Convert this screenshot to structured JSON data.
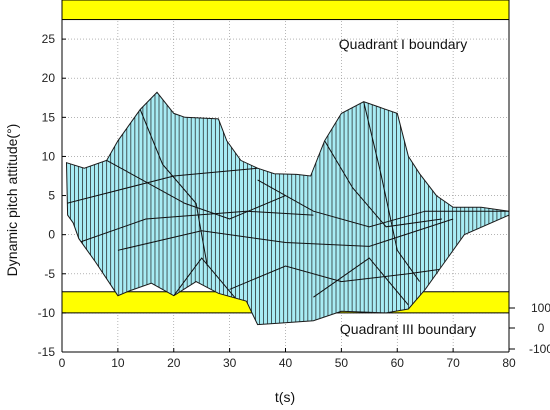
{
  "chart_data": {
    "type": "area",
    "title": "",
    "xlabel": "t(s)",
    "ylabel": "Dynamic pitch attitude(°)",
    "xlim": [
      0,
      80
    ],
    "ylim": [
      -15,
      30
    ],
    "xticks": [
      0,
      10,
      20,
      30,
      40,
      50,
      60,
      70,
      80
    ],
    "yticks": [
      -15,
      -10,
      -5,
      0,
      5,
      10,
      15,
      20,
      25
    ],
    "grid": true,
    "colors": {
      "surface_fill": "#a8ecf4",
      "surface_stroke": "#1a1a1a",
      "boundary_fill": "#ffff00",
      "grid": "#888888"
    },
    "boundaries": [
      {
        "label": "Quadrant I boundary",
        "y_range": [
          27.5,
          31
        ]
      },
      {
        "label": "Quadrant III boundary",
        "y_range": [
          -10,
          -7.3
        ]
      }
    ],
    "upper_envelope": [
      [
        0.8,
        9.2
      ],
      [
        4,
        8.5
      ],
      [
        8,
        9.5
      ],
      [
        10,
        12
      ],
      [
        14,
        16
      ],
      [
        17,
        18.2
      ],
      [
        20,
        15.5
      ],
      [
        22,
        15
      ],
      [
        28,
        14.8
      ],
      [
        29.5,
        12
      ],
      [
        32,
        9.5
      ],
      [
        35,
        8.5
      ],
      [
        38,
        7.8
      ],
      [
        42,
        7.7
      ],
      [
        44.5,
        7.5
      ],
      [
        47,
        12
      ],
      [
        50,
        15.5
      ],
      [
        54,
        17
      ],
      [
        60,
        15.5
      ],
      [
        62,
        10
      ],
      [
        64,
        7.8
      ],
      [
        67,
        5
      ],
      [
        70,
        3.5
      ],
      [
        75,
        3.5
      ],
      [
        80,
        3
      ]
    ],
    "lower_envelope": [
      [
        80,
        2.5
      ],
      [
        72,
        0
      ],
      [
        68,
        -4
      ],
      [
        65,
        -7
      ],
      [
        62,
        -9.5
      ],
      [
        58,
        -10
      ],
      [
        50,
        -9.8
      ],
      [
        45,
        -11
      ],
      [
        39,
        -11.3
      ],
      [
        35,
        -11.5
      ],
      [
        33,
        -8.5
      ],
      [
        28,
        -7.5
      ],
      [
        24,
        -6
      ],
      [
        20,
        -7.8
      ],
      [
        16,
        -6.2
      ],
      [
        12,
        -7.2
      ],
      [
        10,
        -7.8
      ],
      [
        6,
        -3.5
      ],
      [
        3,
        -0.5
      ],
      [
        2,
        1.5
      ],
      [
        1,
        2.5
      ],
      [
        0.8,
        9.2
      ]
    ],
    "z_axis": {
      "ticks": [
        100,
        0,
        -100
      ]
    }
  }
}
